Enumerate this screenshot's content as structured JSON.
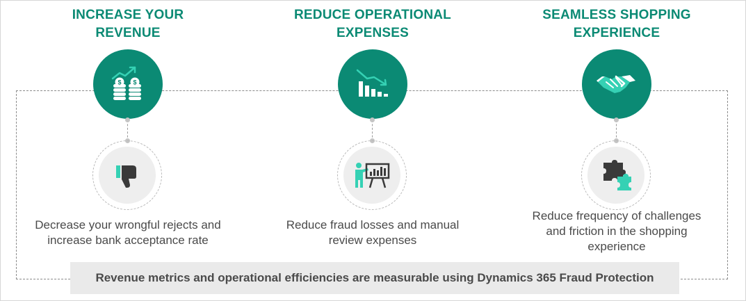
{
  "colors": {
    "accent": "#0b8a74",
    "icon_accent": "#35d1b4",
    "icon_dark": "#3a3a3a",
    "text": "#4a4a4a",
    "banner_bg": "#eaeaea"
  },
  "pillars": [
    {
      "heading_lines": [
        "INCREASE YOUR",
        "REVENUE"
      ],
      "top_icon": "coins-growth-icon",
      "bottom_icon": "thumbs-down-icon",
      "description_lines": [
        "Decrease your wrongful rejects and",
        "increase bank acceptance rate"
      ]
    },
    {
      "heading_lines": [
        "REDUCE OPERATIONAL",
        "EXPENSES"
      ],
      "top_icon": "declining-bars-icon",
      "bottom_icon": "presentation-board-icon",
      "description_lines": [
        "Reduce fraud losses and manual",
        "review expenses"
      ]
    },
    {
      "heading_lines": [
        "SEAMLESS SHOPPING",
        "EXPERIENCE"
      ],
      "top_icon": "handshake-icon",
      "bottom_icon": "puzzle-piece-icon",
      "description_lines": [
        "Reduce frequency of challenges",
        "and friction in the shopping",
        "experience"
      ]
    }
  ],
  "banner": {
    "text": "Revenue metrics and operational efficiencies are measurable using Dynamics 365 Fraud Protection"
  }
}
